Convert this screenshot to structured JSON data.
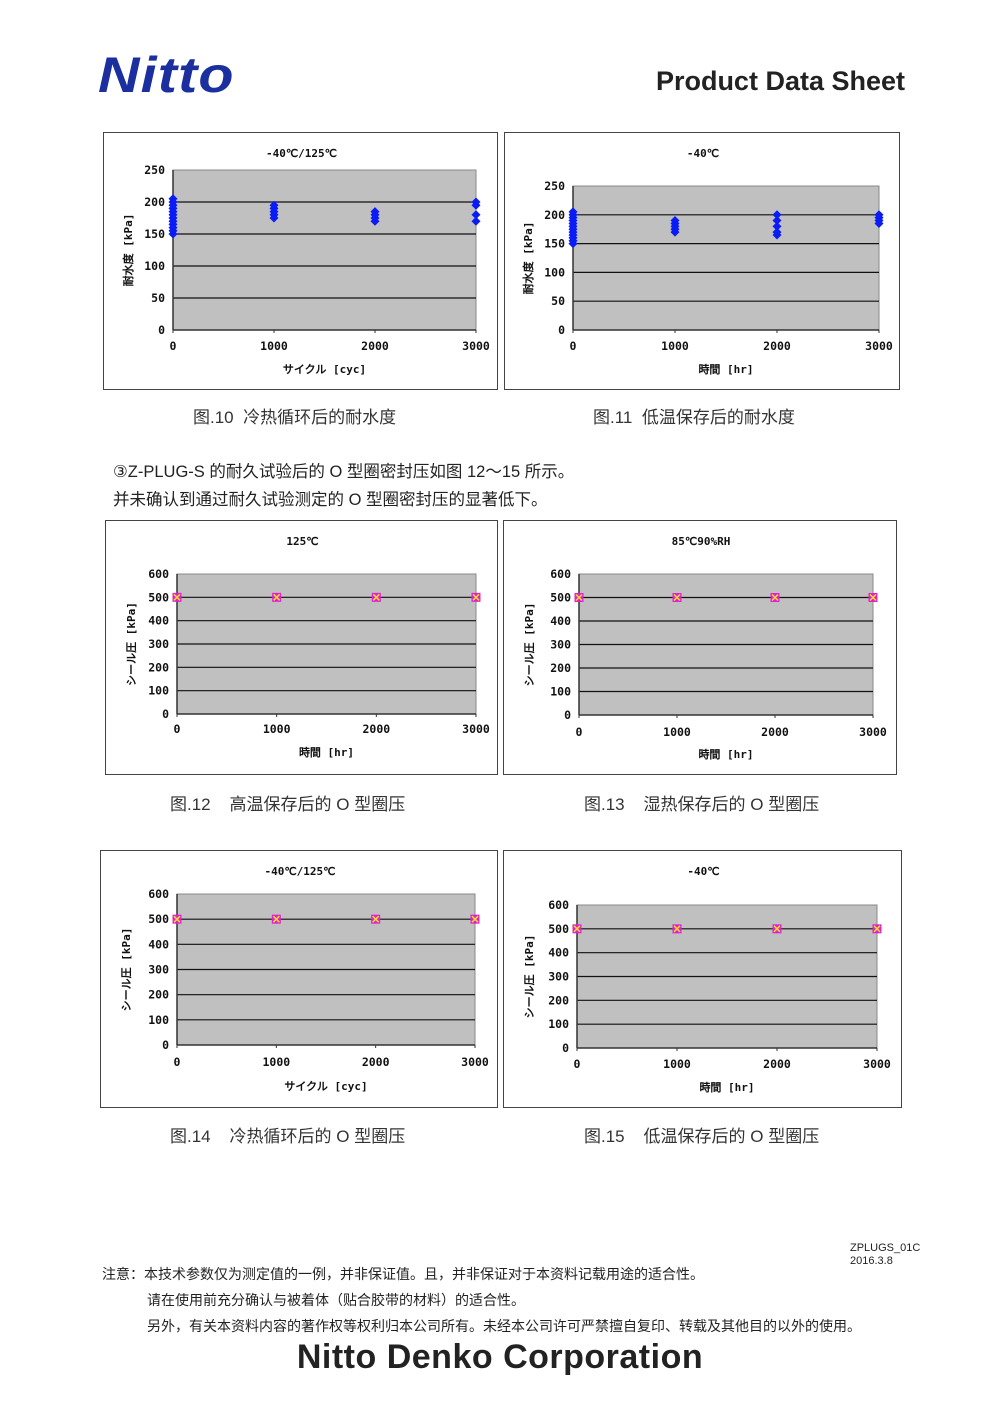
{
  "header": {
    "logo": "Nitto",
    "title": "Product Data Sheet"
  },
  "colors": {
    "brand": "#1b2f9e",
    "plot_bg": "#c0c0c0",
    "water_marker": "#0a1cf5",
    "seal_marker": "#e020d0",
    "seal_marker_inner": "#f0e020"
  },
  "captions": [
    "图.10  冷热循环后的耐水度",
    "图.11  低温保存后的耐水度",
    "图.12    高温保存后的 O 型圈压",
    "图.13    湿热保存后的 O 型圈压",
    "图.14    冷热循环后的 O 型圈压",
    "图.15    低温保存后的 O 型圈压"
  ],
  "body_text": [
    "③Z-PLUG-S 的耐久试验后的 O 型圈密封压如图 12～15 所示。",
    "并未确认到通过耐久试验测定的 O 型圈密封压的显著低下。"
  ],
  "doc_id": "ZPLUGS_01C",
  "doc_date": "2016.3.8",
  "notes": [
    "注意：本技术参数仅为测定值的一例，并非保证值。且，并非保证对于本资料记载用途的适合性。",
    "请在使用前充分确认与被着体（贴合胶带的材料）的适合性。",
    "另外，有关本资料内容的著作权等权利归本公司所有。未经本公司许可严禁擅自复印、转载及其他目的以外的使用。"
  ],
  "footer": {
    "company": "Nitto Denko Corporation"
  },
  "chart_data": [
    {
      "type": "scatter",
      "title": "-40℃/125℃",
      "xlabel": "サイクル [cyc]",
      "ylabel": "耐水度 [kPa]",
      "xlim": [
        0,
        3000
      ],
      "ylim": [
        0,
        250
      ],
      "xticks": [
        "0",
        "1000",
        "2000",
        "3000"
      ],
      "yticks": [
        "0",
        "50",
        "100",
        "150",
        "200",
        "250"
      ],
      "grid": true,
      "marker": "diamond",
      "points": [
        {
          "x": 0,
          "y": [
            150,
            155,
            160,
            165,
            170,
            175,
            180,
            185,
            190,
            195,
            200,
            205
          ]
        },
        {
          "x": 1000,
          "y": [
            175,
            180,
            185,
            190,
            195
          ]
        },
        {
          "x": 2000,
          "y": [
            170,
            175,
            180,
            185
          ]
        },
        {
          "x": 3000,
          "y": [
            170,
            180,
            195,
            200
          ]
        }
      ]
    },
    {
      "type": "scatter",
      "title": "-40℃",
      "xlabel": "時間 [hr]",
      "ylabel": "耐水度 [kPa]",
      "xlim": [
        0,
        3000
      ],
      "ylim": [
        0,
        250
      ],
      "xticks": [
        "0",
        "1000",
        "2000",
        "3000"
      ],
      "yticks": [
        "0",
        "50",
        "100",
        "150",
        "200",
        "250"
      ],
      "grid": true,
      "marker": "diamond",
      "points": [
        {
          "x": 0,
          "y": [
            150,
            155,
            160,
            165,
            170,
            175,
            180,
            185,
            190,
            195,
            200,
            205
          ]
        },
        {
          "x": 1000,
          "y": [
            170,
            175,
            180,
            185,
            190
          ]
        },
        {
          "x": 2000,
          "y": [
            165,
            170,
            180,
            190,
            200
          ]
        },
        {
          "x": 3000,
          "y": [
            185,
            190,
            195,
            200
          ]
        }
      ]
    },
    {
      "type": "scatter",
      "title": "125℃",
      "xlabel": "時間 [hr]",
      "ylabel": "シール圧 [kPa]",
      "xlim": [
        0,
        3000
      ],
      "ylim": [
        0,
        600
      ],
      "xticks": [
        "0",
        "1000",
        "2000",
        "3000"
      ],
      "yticks": [
        "0",
        "100",
        "200",
        "300",
        "400",
        "500",
        "600"
      ],
      "grid": true,
      "marker": "square",
      "points": [
        {
          "x": 0,
          "y": [
            500
          ]
        },
        {
          "x": 1000,
          "y": [
            500
          ]
        },
        {
          "x": 2000,
          "y": [
            500
          ]
        },
        {
          "x": 3000,
          "y": [
            500
          ]
        }
      ]
    },
    {
      "type": "scatter",
      "title": "85℃90%RH",
      "xlabel": "時間 [hr]",
      "ylabel": "シール圧 [kPa]",
      "xlim": [
        0,
        3000
      ],
      "ylim": [
        0,
        600
      ],
      "xticks": [
        "0",
        "1000",
        "2000",
        "3000"
      ],
      "yticks": [
        "0",
        "100",
        "200",
        "300",
        "400",
        "500",
        "600"
      ],
      "grid": true,
      "marker": "square",
      "points": [
        {
          "x": 0,
          "y": [
            500
          ]
        },
        {
          "x": 1000,
          "y": [
            500
          ]
        },
        {
          "x": 2000,
          "y": [
            500
          ]
        },
        {
          "x": 3000,
          "y": [
            500
          ]
        }
      ]
    },
    {
      "type": "scatter",
      "title": "-40℃/125℃",
      "xlabel": "サイクル [cyc]",
      "ylabel": "シール圧 [kPa]",
      "xlim": [
        0,
        3000
      ],
      "ylim": [
        0,
        600
      ],
      "xticks": [
        "0",
        "1000",
        "2000",
        "3000"
      ],
      "yticks": [
        "0",
        "100",
        "200",
        "300",
        "400",
        "500",
        "600"
      ],
      "grid": true,
      "marker": "square",
      "points": [
        {
          "x": 0,
          "y": [
            500
          ]
        },
        {
          "x": 1000,
          "y": [
            500
          ]
        },
        {
          "x": 2000,
          "y": [
            500
          ]
        },
        {
          "x": 3000,
          "y": [
            500
          ]
        }
      ]
    },
    {
      "type": "scatter",
      "title": "-40℃",
      "xlabel": "時間 [hr]",
      "ylabel": "シール圧 [kPa]",
      "xlim": [
        0,
        3000
      ],
      "ylim": [
        0,
        600
      ],
      "xticks": [
        "0",
        "1000",
        "2000",
        "3000"
      ],
      "yticks": [
        "0",
        "100",
        "200",
        "300",
        "400",
        "500",
        "600"
      ],
      "grid": true,
      "marker": "square",
      "points": [
        {
          "x": 0,
          "y": [
            500
          ]
        },
        {
          "x": 1000,
          "y": [
            500
          ]
        },
        {
          "x": 2000,
          "y": [
            500
          ]
        },
        {
          "x": 3000,
          "y": [
            500
          ]
        }
      ]
    }
  ]
}
